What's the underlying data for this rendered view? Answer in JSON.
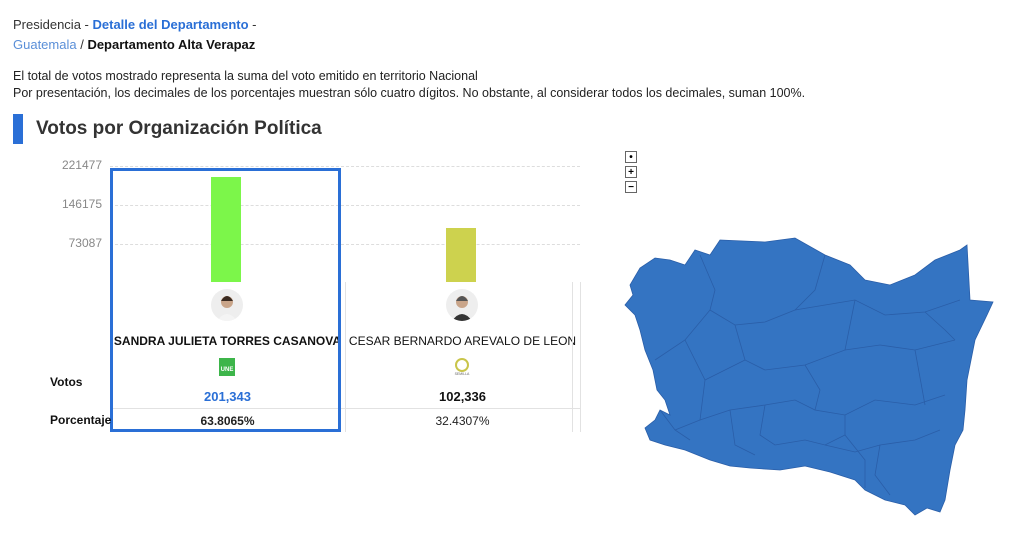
{
  "breadcrumb": {
    "root": "Presidencia",
    "sep1": " - ",
    "detail_link": "Detalle del Departamento",
    "sep2": " -",
    "country": "Guatemala",
    "sep3": " / ",
    "current": "Departamento Alta Verapaz"
  },
  "notes": {
    "line1": "El total de votos mostrado representa la suma del voto emitido en territorio Nacional",
    "line2": "Por presentación, los decimales de los porcentajes muestran sólo cuatro dígitos. No obstante, al considerar todos los decimales, suman 100%."
  },
  "section": {
    "title": "Votos por Organización Política"
  },
  "rows": {
    "votes_label": "Votos",
    "pct_label": "Porcentaje"
  },
  "chart_data": {
    "type": "bar",
    "title": "Votos por Organización Política",
    "yticks": [
      "221477",
      "146175",
      "73087"
    ],
    "ylim": [
      0,
      221477
    ],
    "grid": true,
    "categories": [
      "SANDRA JULIETA TORRES CASANOVA",
      "CESAR BERNARDO AREVALO DE LEON"
    ],
    "values": [
      201343,
      102336
    ],
    "colors": [
      "#7cf64a",
      "#cdd24e"
    ],
    "votes_text": [
      "201,343",
      "102,336"
    ],
    "pct_text": [
      "63.8065%",
      "32.4307%"
    ],
    "parties": [
      "UNE",
      "SEMILLA"
    ]
  },
  "map": {
    "controls": [
      "•",
      "+",
      "−"
    ],
    "fill": "#3474c2"
  },
  "colors": {
    "accent": "#2a6fd6",
    "vote_highlight": "#2a6fd6"
  }
}
